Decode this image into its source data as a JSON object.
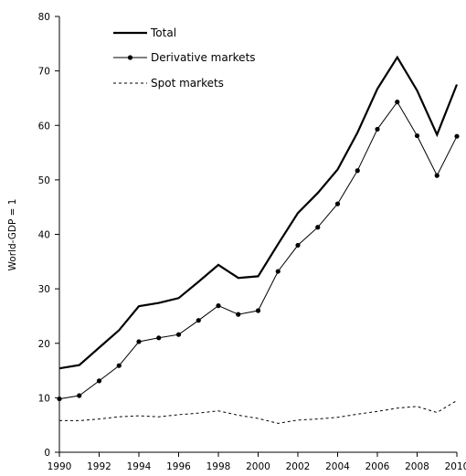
{
  "chart_data": {
    "type": "line",
    "title": "",
    "xlabel": "",
    "ylabel": "World-GDP = 1",
    "xlim": [
      1990,
      2010
    ],
    "ylim": [
      0,
      80
    ],
    "x_ticks": [
      1990,
      1992,
      1994,
      1996,
      1998,
      2000,
      2002,
      2004,
      2006,
      2008,
      2010
    ],
    "y_ticks": [
      0,
      10,
      20,
      30,
      40,
      50,
      60,
      70,
      80
    ],
    "grid": false,
    "legend_position": "top-left",
    "x": [
      1990,
      1991,
      1992,
      1993,
      1994,
      1995,
      1996,
      1997,
      1998,
      1999,
      2000,
      2001,
      2002,
      2003,
      2004,
      2005,
      2006,
      2007,
      2008,
      2009,
      2010
    ],
    "series": [
      {
        "name": "Total",
        "style": "thick-solid",
        "color": "#000000",
        "values": [
          15.4,
          16.0,
          19.2,
          22.4,
          26.8,
          27.4,
          28.3,
          31.3,
          34.4,
          32.0,
          32.3,
          38.2,
          43.9,
          47.6,
          51.9,
          58.7,
          66.7,
          72.5,
          66.4,
          58.3,
          67.5
        ]
      },
      {
        "name": "Derivative markets",
        "style": "thin-solid-markers",
        "color": "#000000",
        "values": [
          9.8,
          10.4,
          13.1,
          15.9,
          20.3,
          21.0,
          21.6,
          24.2,
          26.9,
          25.3,
          26.0,
          33.2,
          38.0,
          41.3,
          45.6,
          51.7,
          59.3,
          64.3,
          58.1,
          50.8,
          58.0
        ]
      },
      {
        "name": "Spot markets",
        "style": "dashed",
        "color": "#000000",
        "values": [
          5.8,
          5.8,
          6.1,
          6.5,
          6.7,
          6.5,
          6.9,
          7.2,
          7.6,
          6.8,
          6.2,
          5.3,
          5.9,
          6.1,
          6.4,
          7.0,
          7.5,
          8.1,
          8.4,
          7.3,
          9.5
        ]
      }
    ]
  }
}
